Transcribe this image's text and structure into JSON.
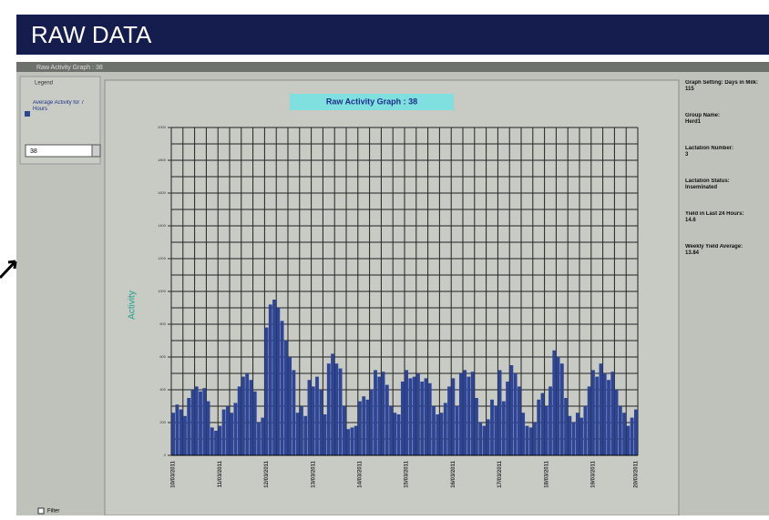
{
  "header": {
    "title": "RAW DATA"
  },
  "window": {
    "title": "Raw Activity Graph : 38"
  },
  "legend_panel": {
    "title": "Legend",
    "item": "Average Activity for 7 Hours",
    "selector": "38",
    "checkbox": "Filter"
  },
  "info_panel": {
    "items": [
      {
        "label": "Graph Setting: Days in Milk:",
        "value": "115"
      },
      {
        "label": "Group Name:",
        "value": "Herd1"
      },
      {
        "label": "Lactation Number:",
        "value": "3"
      },
      {
        "label": "Lactation Status:",
        "value": "Inseminated"
      },
      {
        "label": "Yield in Last 24 Hours:",
        "value": "14.6"
      },
      {
        "label": "Weekly Yield Average:",
        "value": "13.84"
      }
    ]
  },
  "chart_data": {
    "type": "bar",
    "title": "Raw Activity Graph : 38",
    "y_label": "Activity",
    "color": "#2e4595",
    "grid": true,
    "ylim": [
      0,
      2000
    ],
    "yticks": [
      0,
      200,
      400,
      600,
      800,
      1000,
      1200,
      1400,
      1600,
      1800,
      2000
    ],
    "y_grid": [
      0,
      100,
      200,
      300,
      400,
      500,
      600,
      700,
      800,
      900,
      1000,
      1100,
      1200,
      1300,
      1400,
      1500,
      1600,
      1700,
      1800,
      1900,
      2000
    ],
    "categories": [
      "10/03/2011",
      null,
      null,
      null,
      null,
      null,
      null,
      null,
      null,
      null,
      null,
      null,
      "11/03/2011",
      null,
      null,
      null,
      null,
      null,
      null,
      null,
      null,
      null,
      null,
      null,
      "12/03/2011",
      null,
      null,
      null,
      null,
      null,
      null,
      null,
      null,
      null,
      null,
      null,
      "13/03/2011",
      null,
      null,
      null,
      null,
      null,
      null,
      null,
      null,
      null,
      null,
      null,
      "14/03/2011",
      null,
      null,
      null,
      null,
      null,
      null,
      null,
      null,
      null,
      null,
      null,
      "15/03/2011",
      null,
      null,
      null,
      null,
      null,
      null,
      null,
      null,
      null,
      null,
      null,
      "16/03/2011",
      null,
      null,
      null,
      null,
      null,
      null,
      null,
      null,
      null,
      null,
      null,
      "17/03/2011",
      null,
      null,
      null,
      null,
      null,
      null,
      null,
      null,
      null,
      null,
      null,
      "18/03/2011",
      null,
      null,
      null,
      null,
      null,
      null,
      null,
      null,
      null,
      null,
      null,
      "19/03/2011",
      null,
      null,
      null,
      null,
      null,
      null,
      null,
      null,
      null,
      null,
      "20/03/2011"
    ],
    "values": [
      260,
      310,
      280,
      240,
      350,
      400,
      420,
      390,
      410,
      330,
      170,
      150,
      180,
      280,
      300,
      260,
      320,
      420,
      480,
      500,
      460,
      390,
      200,
      230,
      780,
      920,
      950,
      900,
      820,
      700,
      600,
      520,
      260,
      300,
      240,
      460,
      420,
      480,
      400,
      250,
      560,
      620,
      560,
      530,
      300,
      160,
      170,
      180,
      330,
      360,
      340,
      400,
      520,
      480,
      510,
      430,
      300,
      260,
      250,
      450,
      520,
      470,
      480,
      500,
      450,
      470,
      440,
      300,
      250,
      260,
      320,
      420,
      470,
      300,
      500,
      520,
      480,
      510,
      350,
      200,
      180,
      220,
      340,
      300,
      520,
      330,
      450,
      550,
      500,
      420,
      260,
      180,
      170,
      200,
      340,
      380,
      300,
      420,
      640,
      600,
      560,
      350,
      240,
      200,
      260,
      230,
      300,
      420,
      520,
      480,
      560,
      500,
      460,
      510,
      400,
      300,
      260,
      180,
      230,
      280
    ]
  }
}
